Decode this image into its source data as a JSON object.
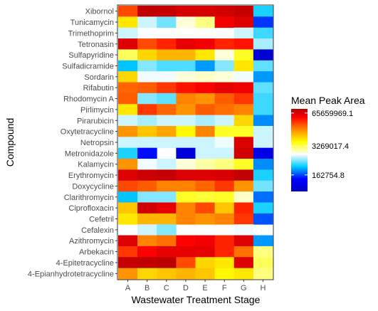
{
  "chart_data": {
    "type": "heatmap",
    "xlabel": "Wastewater Treatment Stage",
    "ylabel": "Compound",
    "x_categories": [
      "A",
      "B",
      "C",
      "D",
      "E",
      "F",
      "G",
      "H"
    ],
    "y_categories": [
      "Xibornol",
      "Tunicamycin",
      "Trimethoprim",
      "Tetronasin",
      "Sulfapyridine",
      "Sulfadicramide",
      "Sordarin",
      "Rifabutin",
      "Rhodomycin A",
      "Pirlimycin",
      "Pirarubicin",
      "Oxytetracycline",
      "Netropsin",
      "Metronidazole",
      "Kalamycin",
      "Erythromycin",
      "Doxycycline",
      "Clarithromycin",
      "Ciprofloxacin",
      "Cefetril",
      "Cefalexin",
      "Azithromycin",
      "Arbekacin",
      "4-Epitetracycline",
      "4-Epianhydrotetracycline"
    ],
    "values": [
      [
        0.78,
        0.97,
        0.96,
        0.93,
        0.93,
        0.94,
        0.96,
        0.3
      ],
      [
        0.6,
        0.4,
        0.35,
        0.45,
        0.5,
        0.88,
        0.92,
        0.18
      ],
      [
        0.4,
        null,
        null,
        null,
        null,
        null,
        0.4,
        0.32
      ],
      [
        0.92,
        0.78,
        0.82,
        0.9,
        0.88,
        0.82,
        0.84,
        0.38
      ],
      [
        0.52,
        0.62,
        0.66,
        0.66,
        0.6,
        0.45,
        0.55,
        0.02
      ],
      [
        0.28,
        0.36,
        0.33,
        0.33,
        0.25,
        0.36,
        0.6,
        0.34
      ],
      [
        0.62,
        0.42,
        0.42,
        0.45,
        0.46,
        0.45,
        0.42,
        0.25
      ],
      [
        0.75,
        0.76,
        0.8,
        0.84,
        0.86,
        0.9,
        0.88,
        0.34
      ],
      [
        0.76,
        0.36,
        0.34,
        0.72,
        0.7,
        0.76,
        0.8,
        0.32
      ],
      [
        0.6,
        0.8,
        0.75,
        0.7,
        0.76,
        0.74,
        0.72,
        0.32
      ],
      [
        0.4,
        0.38,
        0.4,
        0.4,
        0.38,
        0.4,
        0.62,
        0.24
      ],
      [
        0.7,
        0.64,
        0.68,
        0.58,
        0.72,
        0.55,
        0.55,
        0.4
      ],
      [
        0.4,
        0.4,
        0.4,
        0.4,
        0.4,
        0.42,
        0.92,
        0.4
      ],
      [
        0.3,
        0.15,
        null,
        0.05,
        0.4,
        0.4,
        0.94,
        0.08
      ],
      [
        0.7,
        0.42,
        0.4,
        0.45,
        0.48,
        0.5,
        0.55,
        0.24
      ],
      [
        0.92,
        0.95,
        0.96,
        0.92,
        0.92,
        0.93,
        0.97,
        0.3
      ],
      [
        0.78,
        0.76,
        0.72,
        0.72,
        0.75,
        0.8,
        0.7,
        0.35
      ],
      [
        0.28,
        0.36,
        0.36,
        0.55,
        0.54,
        0.55,
        0.46,
        0.22
      ],
      [
        0.64,
        0.94,
        0.9,
        0.72,
        0.78,
        0.64,
        0.82,
        0.3
      ],
      [
        0.6,
        0.66,
        0.66,
        0.72,
        0.7,
        0.72,
        0.8,
        0.2
      ],
      [
        null,
        0.4,
        0.36,
        null,
        null,
        null,
        0.42,
        null
      ],
      [
        0.92,
        0.72,
        0.74,
        0.86,
        0.88,
        0.82,
        0.92,
        0.25
      ],
      [
        0.8,
        0.86,
        0.9,
        0.9,
        0.9,
        0.82,
        0.74,
        0.5
      ],
      [
        0.96,
        0.97,
        0.98,
        0.78,
        0.62,
        0.6,
        0.92,
        0.52
      ],
      [
        0.7,
        0.62,
        0.64,
        0.66,
        0.64,
        0.58,
        0.6,
        0.5
      ]
    ],
    "legend": {
      "title": "Mean Peak Area",
      "labels": [
        "65659969.1",
        "3269017.4",
        "162754.8"
      ],
      "label_positions": [
        0.95,
        0.55,
        0.2
      ]
    },
    "grid": false,
    "legend_placement": "right"
  },
  "colorscale": [
    "#0000c8",
    "#0000ff",
    "#00ccff",
    "#ffffff",
    "#ffff00",
    "#ff8800",
    "#ff0000",
    "#b00000"
  ]
}
